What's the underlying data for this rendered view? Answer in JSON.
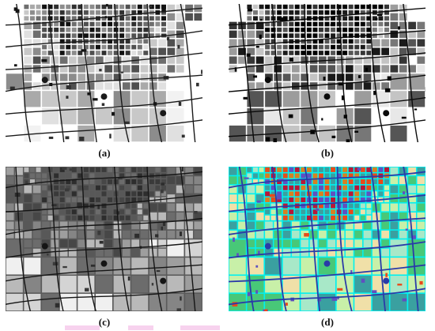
{
  "figure": {
    "panels": [
      {
        "id": "a",
        "label": "(a)",
        "style": "grayscale",
        "background_color": "#ffffff"
      },
      {
        "id": "b",
        "label": "(b)",
        "style": "grayscale-dark",
        "background_color": "#ffffff"
      },
      {
        "id": "c",
        "label": "(c)",
        "style": "grayscale-smooth",
        "background_color": "#5a5a5a"
      },
      {
        "id": "d",
        "label": "(d)",
        "style": "color-segmentation",
        "background_color": "#00f0f0"
      }
    ]
  },
  "palettes": {
    "a": [
      "#ffffff",
      "#f2f2f2",
      "#e0e0e0",
      "#c8c8c8",
      "#a9a9a9",
      "#8c8c8c",
      "#6e6e6e",
      "#505050",
      "#303030",
      "#111111"
    ],
    "b": [
      "#ffffff",
      "#e8e8e8",
      "#c4c4c4",
      "#9c9c9c",
      "#777777",
      "#555555",
      "#353535",
      "#1a1a1a",
      "#050505",
      "#000000"
    ],
    "c": [
      "#f0f0f0",
      "#d4d4d4",
      "#b9b9b9",
      "#9e9e9e",
      "#858585",
      "#6c6c6c",
      "#585858",
      "#474747",
      "#3a3a3a",
      "#2d2d2d"
    ],
    "d": [
      "#00f0f0",
      "#a8e8c8",
      "#c8f0a8",
      "#f0e0a8",
      "#48c878",
      "#3aa0a0",
      "#d88020",
      "#b81838",
      "#6050c0",
      "#e84a1a"
    ]
  },
  "road_colors": {
    "a": "#1a1a1a",
    "b": "#0a0a0a",
    "c": "#151515",
    "d": "#2a3aa8"
  }
}
